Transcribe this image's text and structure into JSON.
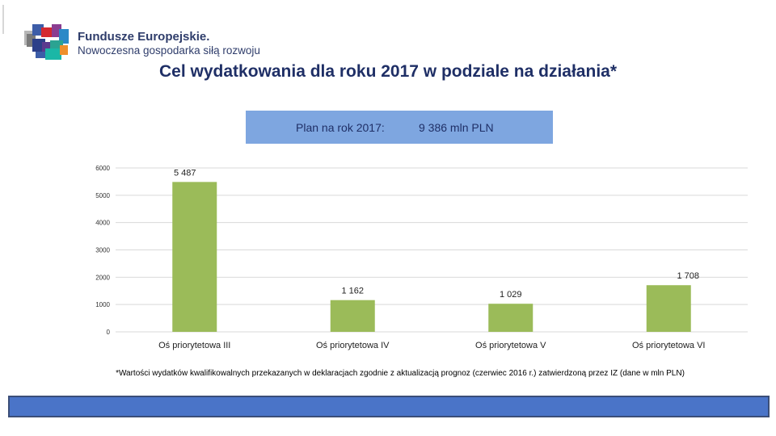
{
  "header": {
    "logo_name": "fundusze-europejskie-logo",
    "brand_line1": "Fundusze Europejskie.",
    "brand_line2": "Nowoczesna gospodarka siłą rozwoju"
  },
  "slide": {
    "title": "Cel wydatkowania dla roku 2017 w podziale na działania*",
    "plan_label": "Plan na rok 2017:",
    "plan_value": "9 386 mln PLN",
    "footnote": "*Wartości wydatków kwalifikowalnych przekazanych w deklaracjach zgodnie z aktualizacją prognoz (czerwiec 2016 r.) zatwierdzoną przez IZ  (dane w mln PLN)"
  },
  "colors": {
    "bar": "#9bbb59",
    "title": "#1f2f66",
    "plan_box": "#7ea6e0",
    "bottom_bar": "#4a74c8",
    "grid": "#d9d9d9"
  },
  "chart_data": {
    "type": "bar",
    "categories": [
      "Oś priorytetowa III",
      "Oś priorytetowa IV",
      "Oś priorytetowa V",
      "Oś priorytetowa VI"
    ],
    "values": [
      5487,
      1162,
      1029,
      1708
    ],
    "data_labels": [
      "5 487",
      "1 162",
      "1 029",
      "1 708"
    ],
    "yticks": [
      0,
      1000,
      2000,
      3000,
      4000,
      5000,
      6000
    ],
    "ylim": [
      0,
      6000
    ],
    "grid": true,
    "title": "",
    "xlabel": "",
    "ylabel": ""
  }
}
